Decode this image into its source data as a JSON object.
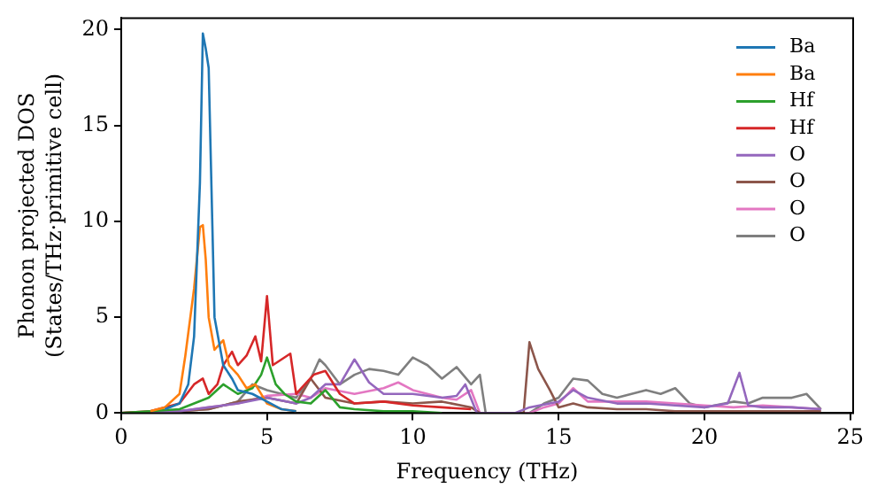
{
  "chart_data": {
    "type": "line",
    "xlabel": "Frequency (THz)",
    "ylabel": "Phonon projected DOS\n(States/THz·primitive cell)",
    "xlim": [
      0,
      25.1
    ],
    "ylim": [
      0,
      20.6
    ],
    "xticks": [
      0,
      5,
      10,
      15,
      20,
      25
    ],
    "yticks": [
      0,
      5,
      10,
      15,
      20
    ],
    "grid": false,
    "legend": "top right",
    "marker": "none",
    "line_style": "solid",
    "series": [
      {
        "name": "Ba",
        "color": "#1f77b4",
        "x": [
          1.5,
          2,
          2.3,
          2.5,
          2.7,
          2.8,
          2.9,
          3.0,
          3.2,
          3.5,
          3.8,
          4.0,
          4.5,
          5.0,
          5.5,
          6
        ],
        "values": [
          0.2,
          0.5,
          1.5,
          4,
          12,
          19.8,
          19,
          18,
          5,
          2.5,
          1.8,
          1.2,
          1,
          0.6,
          0.2,
          0.1
        ]
      },
      {
        "name": "Ba",
        "color": "#ff7f0e",
        "x": [
          1,
          1.5,
          2,
          2.2,
          2.5,
          2.7,
          2.8,
          2.9,
          3.0,
          3.2,
          3.5,
          3.7,
          4.0,
          4.3,
          4.6,
          5.0,
          5.5,
          6
        ],
        "values": [
          0.1,
          0.3,
          1,
          3,
          6.5,
          9.7,
          9.8,
          8,
          5,
          3.3,
          3.8,
          2.5,
          2,
          1.3,
          1.5,
          0.5,
          0.2,
          0.1
        ]
      },
      {
        "name": "Hf",
        "color": "#2ca02c",
        "x": [
          0,
          1,
          2,
          2.5,
          3,
          3.5,
          4,
          4.5,
          4.8,
          5,
          5.3,
          5.6,
          6,
          6.5,
          7,
          7.5,
          8,
          9,
          10,
          11
        ],
        "values": [
          0,
          0.1,
          0.2,
          0.5,
          0.8,
          1.5,
          1,
          1.3,
          2,
          2.9,
          1.5,
          1,
          0.6,
          0.5,
          1.2,
          0.3,
          0.2,
          0.1,
          0.1,
          0
        ]
      },
      {
        "name": "Hf",
        "color": "#d62728",
        "x": [
          0,
          1,
          2,
          2.5,
          2.8,
          3,
          3.3,
          3.5,
          3.8,
          4,
          4.3,
          4.6,
          4.8,
          5,
          5.2,
          5.5,
          5.8,
          6,
          6.3,
          6.6,
          7,
          7.5,
          8,
          9,
          10,
          11,
          12
        ],
        "values": [
          0,
          0.1,
          0.5,
          1.5,
          1.8,
          1,
          1.5,
          2.5,
          3.2,
          2.5,
          3.0,
          4,
          2.7,
          6.1,
          2.5,
          2.8,
          3.1,
          1,
          1.5,
          2,
          2.2,
          1,
          0.5,
          0.6,
          0.4,
          0.3,
          0.2
        ]
      },
      {
        "name": "O",
        "color": "#9467bd",
        "x": [
          0,
          2,
          3,
          4,
          5,
          6,
          6.5,
          7,
          7.5,
          8,
          8.5,
          9,
          9.5,
          10,
          11,
          11.5,
          11.8,
          12.2,
          13.5,
          14,
          15,
          15.5,
          16,
          17,
          18,
          19,
          20,
          20.8,
          21.2,
          21.5,
          22,
          23,
          24
        ],
        "values": [
          0,
          0.1,
          0.3,
          0.5,
          0.8,
          0.5,
          0.8,
          1.5,
          1.5,
          2.8,
          1.6,
          1,
          1,
          1,
          0.8,
          0.9,
          1.5,
          0,
          0,
          0.3,
          0.6,
          1.2,
          0.8,
          0.5,
          0.5,
          0.4,
          0.3,
          0.5,
          2.1,
          0.4,
          0.3,
          0.3,
          0.2
        ]
      },
      {
        "name": "O",
        "color": "#8c564b",
        "x": [
          0,
          2,
          3,
          4,
          5,
          6,
          6.5,
          7,
          8,
          9,
          10,
          11,
          12,
          12.3,
          13.8,
          14.0,
          14.3,
          14.7,
          15,
          15.5,
          16,
          17,
          18,
          19,
          20,
          21,
          22,
          23,
          24
        ],
        "values": [
          0,
          0.1,
          0.2,
          0.6,
          0.8,
          0.5,
          1.8,
          0.8,
          0.5,
          0.6,
          0.5,
          0.6,
          0.3,
          0,
          0,
          3.7,
          2.3,
          1.2,
          0.3,
          0.5,
          0.3,
          0.2,
          0.2,
          0.1,
          0.1,
          0.1,
          0.1,
          0.1,
          0.1
        ]
      },
      {
        "name": "O",
        "color": "#e377c2",
        "x": [
          0,
          2,
          3,
          4,
          5,
          6,
          6.5,
          7,
          8,
          9,
          9.5,
          10,
          11,
          11.5,
          12,
          12.3,
          14,
          14.5,
          15,
          15.5,
          16,
          17,
          18,
          19,
          20,
          21,
          22,
          23,
          24
        ],
        "values": [
          0,
          0.1,
          0.3,
          0.5,
          0.9,
          1,
          0.8,
          1.3,
          1,
          1.3,
          1.6,
          1.2,
          0.8,
          0.7,
          1.2,
          0,
          0,
          0.3,
          0.5,
          1.3,
          0.6,
          0.6,
          0.6,
          0.5,
          0.4,
          0.3,
          0.4,
          0.3,
          0.2
        ]
      },
      {
        "name": "O",
        "color": "#7f7f7f",
        "x": [
          0,
          2,
          3,
          4,
          4.5,
          5,
          5.5,
          6,
          6.5,
          6.8,
          7,
          7.5,
          8,
          8.5,
          9,
          9.5,
          10,
          10.5,
          11,
          11.5,
          12,
          12.3,
          12.5,
          14,
          14.5,
          15,
          15.5,
          16,
          16.5,
          17,
          17.5,
          18,
          18.5,
          19,
          19.5,
          20,
          21,
          21.5,
          22,
          23,
          23.5,
          24
        ],
        "values": [
          0,
          0.1,
          0.2,
          0.6,
          1.5,
          1.2,
          1,
          0.8,
          1.8,
          2.8,
          2.5,
          1.5,
          2,
          2.3,
          2.2,
          2,
          2.9,
          2.5,
          1.8,
          2.4,
          1.5,
          2,
          0,
          0,
          0.5,
          0.8,
          1.8,
          1.7,
          1,
          0.8,
          1,
          1.2,
          1,
          1.3,
          0.5,
          0.3,
          0.6,
          0.5,
          0.8,
          0.8,
          1,
          0.2
        ]
      }
    ]
  }
}
